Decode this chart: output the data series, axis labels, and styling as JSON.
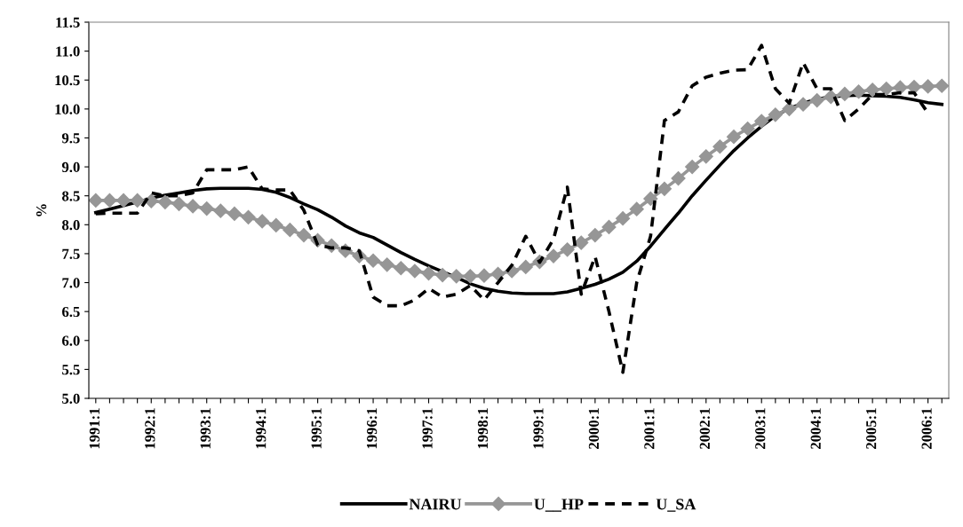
{
  "chart_data": {
    "type": "line",
    "ylabel": "%",
    "categories": [
      "1991:1",
      null,
      null,
      null,
      "1992:1",
      null,
      null,
      null,
      "1993:1",
      null,
      null,
      null,
      "1994:1",
      null,
      null,
      null,
      "1995:1",
      null,
      null,
      null,
      "1996:1",
      null,
      null,
      null,
      "1997:1",
      null,
      null,
      null,
      "1998:1",
      null,
      null,
      null,
      "1999:1",
      null,
      null,
      null,
      "2000:1",
      null,
      null,
      null,
      "2001:1",
      null,
      null,
      null,
      "2002:1",
      null,
      null,
      null,
      "2003:1",
      null,
      null,
      null,
      "2004:1",
      null,
      null,
      null,
      "2005:1",
      null,
      null,
      null,
      "2006:1",
      null
    ],
    "series": [
      {
        "name": "NAIRU",
        "color": "#000000",
        "marker": "none",
        "line_style": "solid",
        "values": [
          8.21,
          8.27,
          8.33,
          8.39,
          8.46,
          8.51,
          8.55,
          8.59,
          8.62,
          8.63,
          8.63,
          8.63,
          8.61,
          8.56,
          8.47,
          8.36,
          8.26,
          8.13,
          7.98,
          7.86,
          7.78,
          7.65,
          7.52,
          7.4,
          7.29,
          7.19,
          7.09,
          6.98,
          6.9,
          6.85,
          6.82,
          6.81,
          6.81,
          6.81,
          6.84,
          6.9,
          6.97,
          7.06,
          7.18,
          7.37,
          7.63,
          7.92,
          8.2,
          8.5,
          8.77,
          9.03,
          9.28,
          9.5,
          9.7,
          9.88,
          10.01,
          10.1,
          10.17,
          10.21,
          10.23,
          10.24,
          10.23,
          10.22,
          10.2,
          10.16,
          10.11,
          10.08
        ]
      },
      {
        "name": "U__HP",
        "color": "#969696",
        "marker": "diamond",
        "line_style": "solid",
        "values": [
          8.42,
          8.42,
          8.42,
          8.42,
          8.41,
          8.39,
          8.36,
          8.32,
          8.28,
          8.24,
          8.19,
          8.13,
          8.06,
          7.99,
          7.91,
          7.82,
          7.73,
          7.64,
          7.55,
          7.46,
          7.38,
          7.31,
          7.25,
          7.2,
          7.16,
          7.13,
          7.11,
          7.11,
          7.12,
          7.15,
          7.2,
          7.27,
          7.36,
          7.46,
          7.57,
          7.69,
          7.82,
          7.96,
          8.11,
          8.27,
          8.45,
          8.62,
          8.8,
          9.0,
          9.18,
          9.35,
          9.52,
          9.66,
          9.79,
          9.9,
          10.0,
          10.08,
          10.15,
          10.21,
          10.26,
          10.3,
          10.33,
          10.35,
          10.37,
          10.38,
          10.39,
          10.4
        ]
      },
      {
        "name": "U_SA",
        "color": "#000000",
        "marker": "none",
        "line_style": "dashed",
        "values": [
          8.19,
          8.2,
          8.2,
          8.2,
          8.55,
          8.5,
          8.5,
          8.55,
          8.95,
          8.95,
          8.95,
          9.0,
          8.62,
          8.6,
          8.6,
          8.25,
          7.65,
          7.6,
          7.6,
          7.55,
          6.75,
          6.6,
          6.6,
          6.7,
          6.9,
          6.75,
          6.8,
          6.95,
          6.7,
          7.0,
          7.3,
          7.8,
          7.35,
          7.75,
          8.65,
          6.8,
          7.45,
          6.5,
          5.45,
          7.0,
          7.8,
          9.8,
          9.95,
          10.4,
          10.55,
          10.62,
          10.67,
          10.68,
          11.1,
          10.35,
          10.1,
          10.8,
          10.35,
          10.35,
          9.8,
          10.0,
          10.25,
          10.25,
          10.28,
          10.28,
          9.93,
          null
        ]
      }
    ],
    "ylim": [
      5.0,
      11.5
    ],
    "yticks": [
      {
        "value": 5.0,
        "label": "5.0"
      },
      {
        "value": 5.5,
        "label": "5.5"
      },
      {
        "value": 6.0,
        "label": "6.0"
      },
      {
        "value": 6.5,
        "label": "6.5"
      },
      {
        "value": 7.0,
        "label": "7.0"
      },
      {
        "value": 7.5,
        "label": "7.5"
      },
      {
        "value": 8.0,
        "label": "8.0"
      },
      {
        "value": 8.5,
        "label": "8.5"
      },
      {
        "value": 9.0,
        "label": "9.0"
      },
      {
        "value": 9.5,
        "label": "9.5"
      },
      {
        "value": 10.0,
        "label": "10.0"
      },
      {
        "value": 10.5,
        "label": "10.5"
      },
      {
        "value": 11.0,
        "label": "11.0"
      },
      {
        "value": 11.5,
        "label": "11.5"
      }
    ],
    "grid": false,
    "legend": "bottom"
  }
}
